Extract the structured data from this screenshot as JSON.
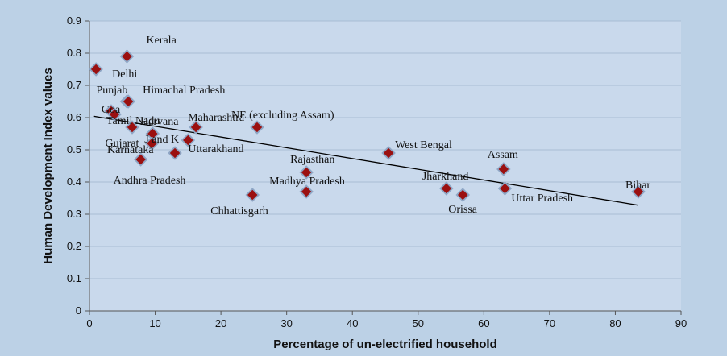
{
  "chart_data": {
    "type": "scatter",
    "title": "",
    "xlabel": "Percentage of un-electrified household",
    "ylabel": "Human Development Index values",
    "xlim": [
      0,
      90
    ],
    "ylim": [
      0,
      0.9
    ],
    "x_ticks": [
      "0",
      "10",
      "20",
      "30",
      "40",
      "50",
      "60",
      "70",
      "80",
      "90"
    ],
    "y_ticks": [
      "0",
      "0.1",
      "0.2",
      "0.3",
      "0.4",
      "0.5",
      "0.6",
      "0.7",
      "0.8",
      "0.9"
    ],
    "grid": "horizontal",
    "marker": "diamond",
    "marker_color": "#9b1010",
    "trendline": {
      "type": "linear",
      "from": [
        0.7,
        0.604
      ],
      "to": [
        83.5,
        0.328
      ]
    },
    "points": [
      {
        "name": "Kerala",
        "x": 5.7,
        "y": 0.79
      },
      {
        "name": "Delhi",
        "x": 1.0,
        "y": 0.75
      },
      {
        "name": "Punjab",
        "x": 5.7,
        "y": 0.65
      },
      {
        "name": "Himachal Pradesh",
        "x": 5.9,
        "y": 0.65
      },
      {
        "name": "Goa",
        "x": 3.3,
        "y": 0.62
      },
      {
        "name": "Tamil Nadu",
        "x": 3.8,
        "y": 0.61
      },
      {
        "name": "Haryana",
        "x": 6.5,
        "y": 0.57
      },
      {
        "name": "Maharashtra",
        "x": 16.2,
        "y": 0.57
      },
      {
        "name": "NE (excluding Assam)",
        "x": 25.5,
        "y": 0.57
      },
      {
        "name": "J and K",
        "x": 9.6,
        "y": 0.55
      },
      {
        "name": "Gujarat",
        "x": 9.5,
        "y": 0.52
      },
      {
        "name": "Karnataka",
        "x": 13.0,
        "y": 0.49
      },
      {
        "name": "Uttarakhand",
        "x": 15.0,
        "y": 0.53
      },
      {
        "name": "Andhra Pradesh",
        "x": 7.8,
        "y": 0.47
      },
      {
        "name": "West Bengal",
        "x": 45.5,
        "y": 0.49
      },
      {
        "name": "Rajasthan",
        "x": 33.0,
        "y": 0.43
      },
      {
        "name": "Madhya Pradesh",
        "x": 33.0,
        "y": 0.37
      },
      {
        "name": "Chhattisgarh",
        "x": 24.8,
        "y": 0.36
      },
      {
        "name": "Assam",
        "x": 63.0,
        "y": 0.44
      },
      {
        "name": "Jharkhand",
        "x": 54.3,
        "y": 0.38
      },
      {
        "name": "Orissa",
        "x": 56.8,
        "y": 0.36
      },
      {
        "name": "Uttar Pradesh",
        "x": 63.2,
        "y": 0.38
      },
      {
        "name": "Bihar",
        "x": 83.5,
        "y": 0.37
      }
    ]
  }
}
